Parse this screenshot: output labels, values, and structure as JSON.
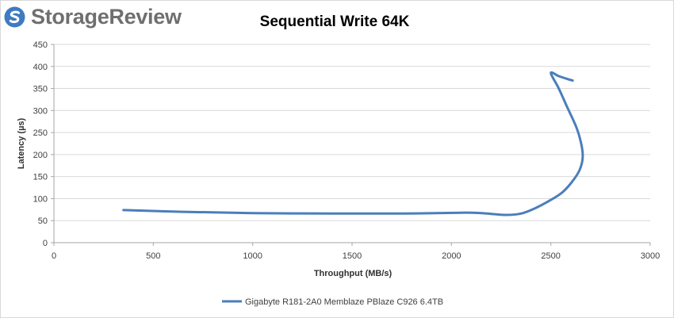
{
  "brand": {
    "name": "StorageReview",
    "accent_color": "#3e7bc1",
    "text_color": "#6f6f6f"
  },
  "chart_data": {
    "type": "line",
    "title": "Sequential Write 64K",
    "xlabel": "Throughput (MB/s)",
    "ylabel": "Latency (µs)",
    "xlim": [
      0,
      3000
    ],
    "ylim": [
      0,
      450
    ],
    "x_ticks": [
      0,
      500,
      1000,
      1500,
      2000,
      2500,
      3000
    ],
    "y_ticks": [
      0,
      50,
      100,
      150,
      200,
      250,
      300,
      350,
      400,
      450
    ],
    "grid": {
      "horizontal": true,
      "vertical": false
    },
    "legend_position": "bottom",
    "series": [
      {
        "name": "Gigabyte R181-2A0 Memblaze PBlaze C926 6.4TB",
        "color": "#4a7ebb",
        "points": [
          [
            350,
            74
          ],
          [
            650,
            70
          ],
          [
            1000,
            67
          ],
          [
            1400,
            66
          ],
          [
            1750,
            66
          ],
          [
            2050,
            68
          ],
          [
            2150,
            67
          ],
          [
            2270,
            63
          ],
          [
            2350,
            66
          ],
          [
            2420,
            78
          ],
          [
            2500,
            97
          ],
          [
            2560,
            115
          ],
          [
            2610,
            140
          ],
          [
            2645,
            165
          ],
          [
            2660,
            192
          ],
          [
            2655,
            220
          ],
          [
            2630,
            260
          ],
          [
            2580,
            310
          ],
          [
            2540,
            350
          ],
          [
            2500,
            385
          ],
          [
            2540,
            378
          ],
          [
            2580,
            372
          ],
          [
            2610,
            368
          ]
        ]
      }
    ]
  }
}
